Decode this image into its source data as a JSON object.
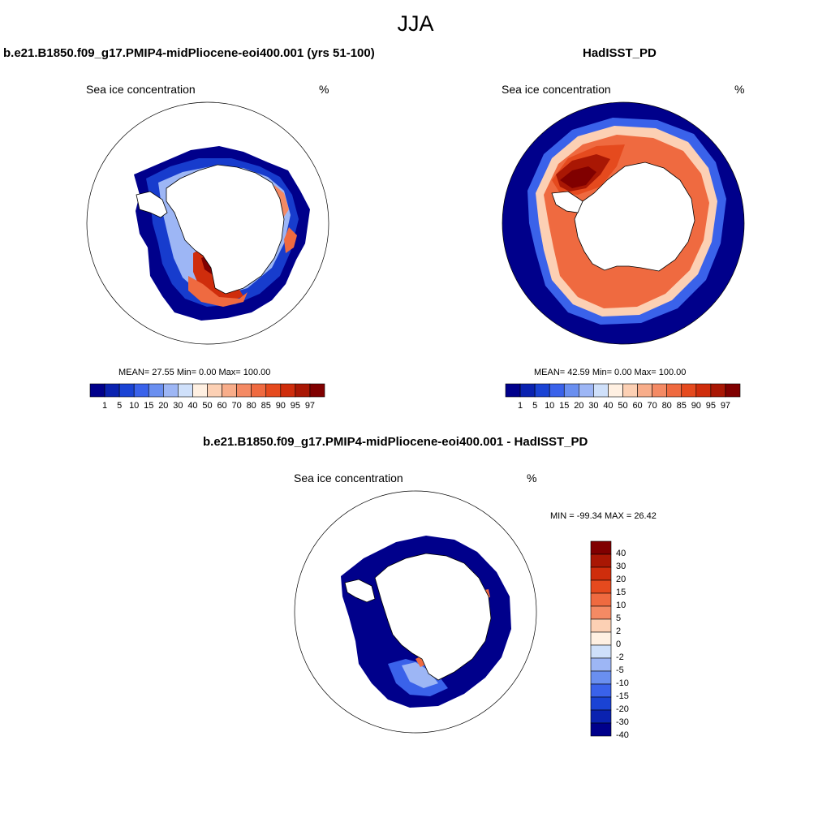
{
  "title": "JJA",
  "variable": "Sea ice concentration",
  "units": "%",
  "panels": {
    "model": {
      "title": "b.e21.B1850.f09_g17.PMIP4-midPliocene-eoi400.001 (yrs 51-100)",
      "stats": "MEAN=  27.55  Min=   0.00  Max= 100.00"
    },
    "obs": {
      "title": "HadISST_PD",
      "stats": "MEAN=  42.59  Min=   0.00  Max= 100.00"
    },
    "diff": {
      "title": "b.e21.B1850.f09_g17.PMIP4-midPliocene-eoi400.001 - HadISST_PD",
      "stats": "MIN = -99.34 MAX =  26.42"
    }
  },
  "colorbar_abs": {
    "labels": [
      "1",
      "5",
      "10",
      "15",
      "20",
      "30",
      "40",
      "50",
      "60",
      "70",
      "80",
      "85",
      "90",
      "95",
      "97"
    ],
    "colors": [
      "#00008b",
      "#0a22b0",
      "#1a43d4",
      "#3a62ea",
      "#6a8ff0",
      "#9db6f5",
      "#cfe0fa",
      "#fff0e2",
      "#fcd0b4",
      "#f8ad8a",
      "#f48a64",
      "#ef6a40",
      "#e54a1e",
      "#cf2d0c",
      "#a91704",
      "#800000"
    ]
  },
  "colorbar_diff": {
    "labels": [
      "40",
      "30",
      "20",
      "15",
      "10",
      "5",
      "2",
      "0",
      "-2",
      "-5",
      "-10",
      "-15",
      "-20",
      "-30",
      "-40"
    ],
    "colors": [
      "#800000",
      "#a91704",
      "#cf2d0c",
      "#e54a1e",
      "#ef6a40",
      "#f48a64",
      "#fcd0b4",
      "#fff0e2",
      "#cfe0fa",
      "#9db6f5",
      "#6a8ff0",
      "#3a62ea",
      "#1a43d4",
      "#0a22b0",
      "#00008b"
    ]
  }
}
